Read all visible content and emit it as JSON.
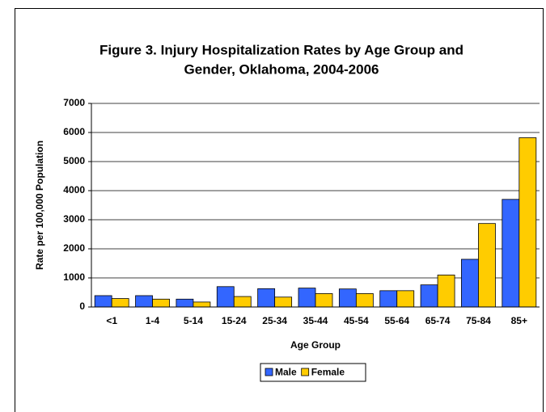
{
  "chart_data": {
    "type": "bar",
    "title": [
      "Figure 3. Injury Hospitalization Rates by Age Group and",
      "Gender, Oklahoma, 2004-2006"
    ],
    "x_label": "Age Group",
    "y_label": "Rate per 100,000 Population",
    "categories": [
      "<1",
      "1-4",
      "5-14",
      "15-24",
      "25-34",
      "35-44",
      "45-54",
      "55-64",
      "65-74",
      "75-84",
      "85+"
    ],
    "series": [
      {
        "name": "Male",
        "color": "#3366ff",
        "values": [
          390,
          390,
          270,
          700,
          630,
          650,
          620,
          560,
          760,
          1640,
          3700
        ]
      },
      {
        "name": "Female",
        "color": "#ffcc00",
        "values": [
          290,
          270,
          170,
          360,
          340,
          460,
          460,
          560,
          1100,
          2870,
          5820
        ]
      }
    ],
    "ylim": [
      0,
      7000
    ],
    "yticks": [
      0,
      1000,
      2000,
      3000,
      4000,
      5000,
      6000,
      7000
    ],
    "grid": true,
    "legend": "bottom"
  }
}
